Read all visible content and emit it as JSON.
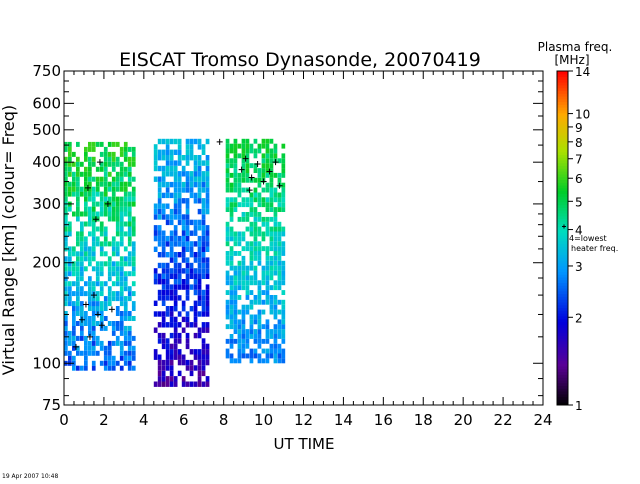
{
  "chart_data": {
    "type": "heatmap",
    "title": "EISCAT Tromso Dynasonde,  20070419",
    "xlabel": "UT TIME",
    "ylabel": "Virtual Range [km]  (colour= Freq)",
    "x_ticks": [
      "0",
      "2",
      "4",
      "6",
      "8",
      "10",
      "12",
      "14",
      "16",
      "18",
      "20",
      "22",
      "24"
    ],
    "y_ticks": [
      "75",
      "100",
      "200",
      "300",
      "400",
      "500",
      "600",
      "750"
    ],
    "y_tick_values": [
      75,
      100,
      200,
      300,
      400,
      500,
      600,
      750
    ],
    "xlim": [
      0,
      24
    ],
    "ylim": [
      75,
      750
    ],
    "y_scale": "log",
    "colorbar": {
      "title_line1": "Plasma freq.",
      "title_line2": "[MHz]",
      "ticks": [
        "1",
        "2",
        "3",
        "4",
        "5",
        "6",
        "7",
        "8",
        "9",
        "10",
        "14"
      ],
      "tick_values": [
        1,
        2,
        3,
        4,
        5,
        6,
        7,
        8,
        9,
        10,
        14
      ],
      "range": [
        1,
        14
      ],
      "scale": "log",
      "marker_label_line1": "4=lowest",
      "marker_label_line2": "heater freq.",
      "marker_value": 4
    },
    "regions": [
      {
        "name": "early",
        "t": [
          0.0,
          3.6
        ],
        "h": [
          95,
          460
        ],
        "f": [
          2.0,
          6.0
        ]
      },
      {
        "name": "middle",
        "t": [
          4.5,
          7.3
        ],
        "h": [
          85,
          470
        ],
        "f": [
          1.3,
          3.6
        ]
      },
      {
        "name": "late",
        "t": [
          8.1,
          10.9
        ],
        "h": [
          100,
          470
        ],
        "f": [
          2.3,
          5.6
        ]
      }
    ],
    "heater_marks": [
      {
        "t": 0.9,
        "h": 135
      },
      {
        "t": 1.1,
        "h": 150
      },
      {
        "t": 1.3,
        "h": 120
      },
      {
        "t": 1.5,
        "h": 160
      },
      {
        "t": 1.7,
        "h": 140
      },
      {
        "t": 1.9,
        "h": 130
      },
      {
        "t": 0.6,
        "h": 112
      },
      {
        "t": 2.4,
        "h": 145
      },
      {
        "t": 2.2,
        "h": 300
      },
      {
        "t": 1.8,
        "h": 400
      },
      {
        "t": 1.2,
        "h": 335
      },
      {
        "t": 1.6,
        "h": 270
      },
      {
        "t": 7.8,
        "h": 460
      },
      {
        "t": 8.9,
        "h": 380
      },
      {
        "t": 9.1,
        "h": 410
      },
      {
        "t": 9.4,
        "h": 360
      },
      {
        "t": 9.7,
        "h": 395
      },
      {
        "t": 10.0,
        "h": 350
      },
      {
        "t": 10.3,
        "h": 375
      },
      {
        "t": 10.6,
        "h": 400
      },
      {
        "t": 10.8,
        "h": 340
      },
      {
        "t": 9.3,
        "h": 330
      }
    ]
  },
  "timestamp": "19 Apr 2007  10:48",
  "colors": {
    "axis": "#000000",
    "background": "#ffffff"
  }
}
